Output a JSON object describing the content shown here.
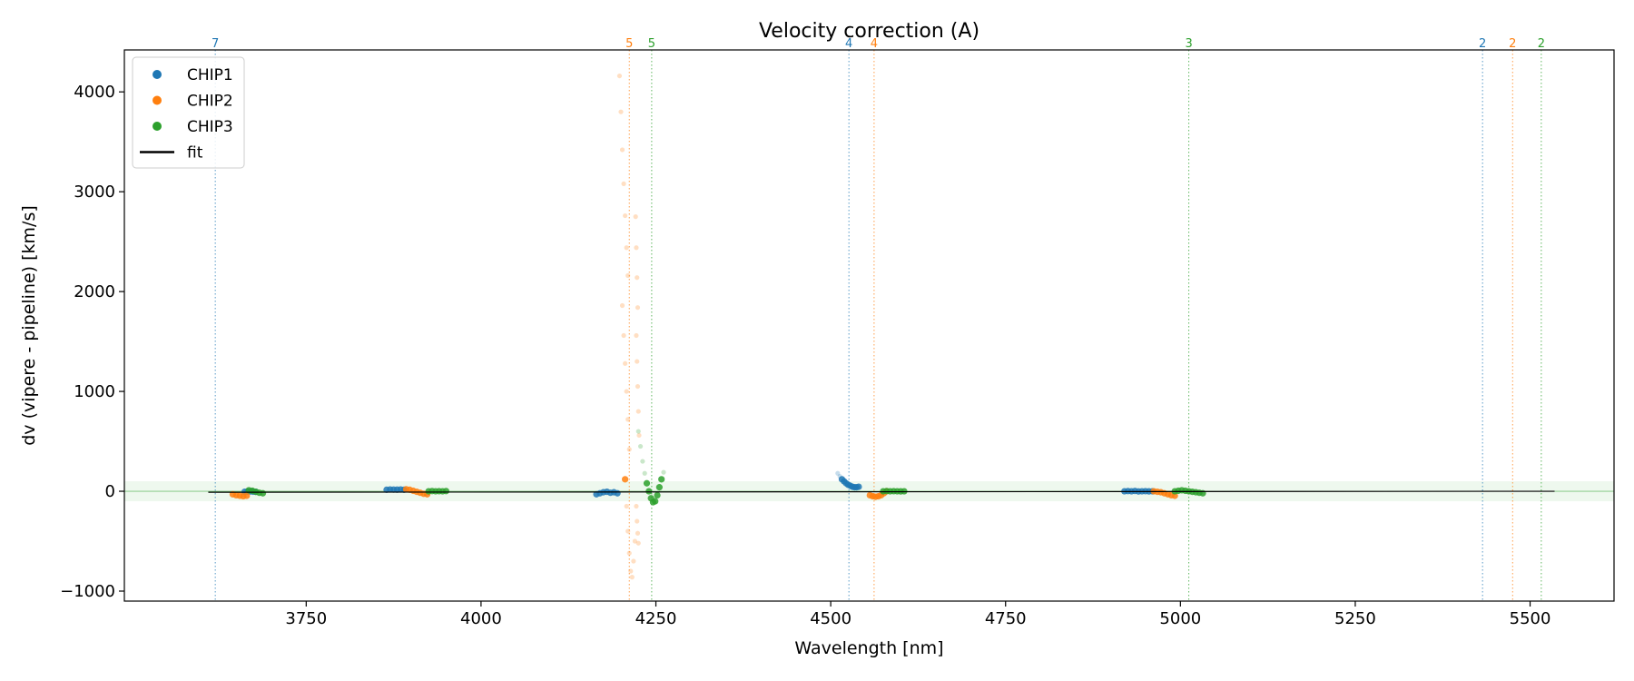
{
  "chart_data": {
    "type": "scatter",
    "title": "Velocity correction (A)",
    "xlabel": "Wavelength [nm]",
    "ylabel": "dv (vipere - pipeline) [km/s]",
    "xlim": [
      3490,
      5620
    ],
    "ylim": [
      -1100,
      4420
    ],
    "xticks": [
      3750,
      4000,
      4250,
      4500,
      4750,
      5000,
      5250,
      5500
    ],
    "yticks": [
      -1000,
      0,
      1000,
      2000,
      3000,
      4000
    ],
    "grid": false,
    "legend_position": "top-left",
    "colors": {
      "CHIP1": "#1f77b4",
      "CHIP2": "#ff7f0e",
      "CHIP3": "#2ca02c",
      "fit": "#000000"
    },
    "legend": [
      {
        "label": "CHIP1",
        "kind": "marker",
        "color": "#1f77b4"
      },
      {
        "label": "CHIP2",
        "kind": "marker",
        "color": "#ff7f0e"
      },
      {
        "label": "CHIP3",
        "kind": "marker",
        "color": "#2ca02c"
      },
      {
        "label": "fit",
        "kind": "line",
        "color": "#000000"
      }
    ],
    "band": {
      "ymin": -100,
      "ymax": 100,
      "color": "#2ca02c"
    },
    "order_lines": [
      {
        "x": 3620,
        "label": "7",
        "series": "CHIP1"
      },
      {
        "x": 4212,
        "label": "5",
        "series": "CHIP2"
      },
      {
        "x": 4244,
        "label": "5",
        "series": "CHIP3"
      },
      {
        "x": 4526,
        "label": "4",
        "series": "CHIP1"
      },
      {
        "x": 4562,
        "label": "4",
        "series": "CHIP2"
      },
      {
        "x": 5012,
        "label": "3",
        "series": "CHIP3"
      },
      {
        "x": 5432,
        "label": "2",
        "series": "CHIP1"
      },
      {
        "x": 5475,
        "label": "2",
        "series": "CHIP2"
      },
      {
        "x": 5516,
        "label": "2",
        "series": "CHIP3"
      }
    ],
    "fit": {
      "x": [
        3610,
        5535
      ],
      "y": [
        -10,
        0
      ]
    },
    "series": [
      {
        "name": "CHIP1",
        "segments": [
          {
            "x": [
              3662,
              3666,
              3670,
              3674,
              3678
            ],
            "y": [
              -5,
              -3,
              -2,
              -4,
              -6
            ]
          },
          {
            "x": [
              3865,
              3870,
              3875,
              3880,
              3885,
              3890
            ],
            "y": [
              15,
              18,
              17,
              16,
              18,
              15
            ]
          },
          {
            "x": [
              4165,
              4170,
              4175,
              4180,
              4185,
              4190,
              4195
            ],
            "y": [
              -30,
              -20,
              -10,
              -5,
              -15,
              -10,
              -20
            ]
          },
          {
            "x": [
              4510,
              4513,
              4516,
              4519,
              4522,
              4525,
              4528,
              4531,
              4534,
              4537,
              4540
            ],
            "y": [
              180,
              150,
              120,
              100,
              80,
              65,
              55,
              45,
              40,
              40,
              45
            ]
          },
          {
            "x": [
              4920,
              4925,
              4930,
              4935,
              4940,
              4945,
              4950,
              4955,
              4960
            ],
            "y": [
              0,
              2,
              0,
              3,
              -2,
              0,
              1,
              -1,
              0
            ]
          }
        ]
      },
      {
        "name": "CHIP2",
        "segments": [
          {
            "x": [
              3645,
              3650,
              3655,
              3660,
              3665
            ],
            "y": [
              -30,
              -40,
              -45,
              -50,
              -45
            ]
          },
          {
            "x": [
              3893,
              3898,
              3903,
              3908,
              3913,
              3918,
              3923
            ],
            "y": [
              20,
              15,
              5,
              -5,
              -15,
              -25,
              -30
            ]
          },
          {
            "x": [
              4198,
              4200,
              4202,
              4204,
              4206,
              4208,
              4210
            ],
            "y": [
              4160,
              3800,
              3420,
              3080,
              2760,
              2440,
              2160
            ]
          },
          {
            "x": [
              4202,
              4204,
              4206,
              4208,
              4210,
              4212
            ],
            "y": [
              1860,
              1560,
              1280,
              1000,
              720,
              420
            ]
          },
          {
            "x": [
              4206,
              4208,
              4210,
              4212,
              4214,
              4216,
              4218,
              4220
            ],
            "y": [
              120,
              -150,
              -400,
              -620,
              -800,
              -860,
              -700,
              -500
            ]
          },
          {
            "x": [
              4221,
              4222,
              4223,
              4224
            ],
            "y": [
              2750,
              2440,
              2140,
              1840
            ]
          },
          {
            "x": [
              4222,
              4223,
              4224,
              4225,
              4226
            ],
            "y": [
              1560,
              1300,
              1050,
              800,
              560
            ]
          },
          {
            "x": [
              4222,
              4223,
              4224,
              4225
            ],
            "y": [
              -150,
              -300,
              -420,
              -520
            ]
          },
          {
            "x": [
              4556,
              4560,
              4564,
              4568,
              4572,
              4576,
              4580
            ],
            "y": [
              -40,
              -50,
              -55,
              -50,
              -40,
              -20,
              0
            ]
          },
          {
            "x": [
              4962,
              4967,
              4972,
              4977,
              4982,
              4987,
              4992
            ],
            "y": [
              0,
              -5,
              -10,
              -20,
              -30,
              -40,
              -45
            ]
          }
        ]
      },
      {
        "name": "CHIP3",
        "segments": [
          {
            "x": [
              3668,
              3673,
              3678,
              3683,
              3688
            ],
            "y": [
              10,
              5,
              -5,
              -15,
              -20
            ]
          },
          {
            "x": [
              3925,
              3930,
              3935,
              3940,
              3945,
              3950
            ],
            "y": [
              0,
              2,
              0,
              1,
              0,
              2
            ]
          },
          {
            "x": [
              4225,
              4228,
              4231,
              4234,
              4237,
              4240,
              4243,
              4246,
              4249,
              4252,
              4255,
              4258,
              4261
            ],
            "y": [
              600,
              450,
              300,
              180,
              80,
              0,
              -70,
              -110,
              -100,
              -40,
              40,
              120,
              190
            ]
          },
          {
            "x": [
              4575,
              4580,
              4585,
              4590,
              4595,
              4600,
              4605
            ],
            "y": [
              0,
              2,
              0,
              1,
              0,
              -1,
              0
            ]
          },
          {
            "x": [
              4992,
              4997,
              5002,
              5007,
              5012,
              5017,
              5022,
              5027,
              5032
            ],
            "y": [
              0,
              5,
              10,
              5,
              0,
              -5,
              -10,
              -15,
              -20
            ]
          }
        ]
      }
    ]
  }
}
